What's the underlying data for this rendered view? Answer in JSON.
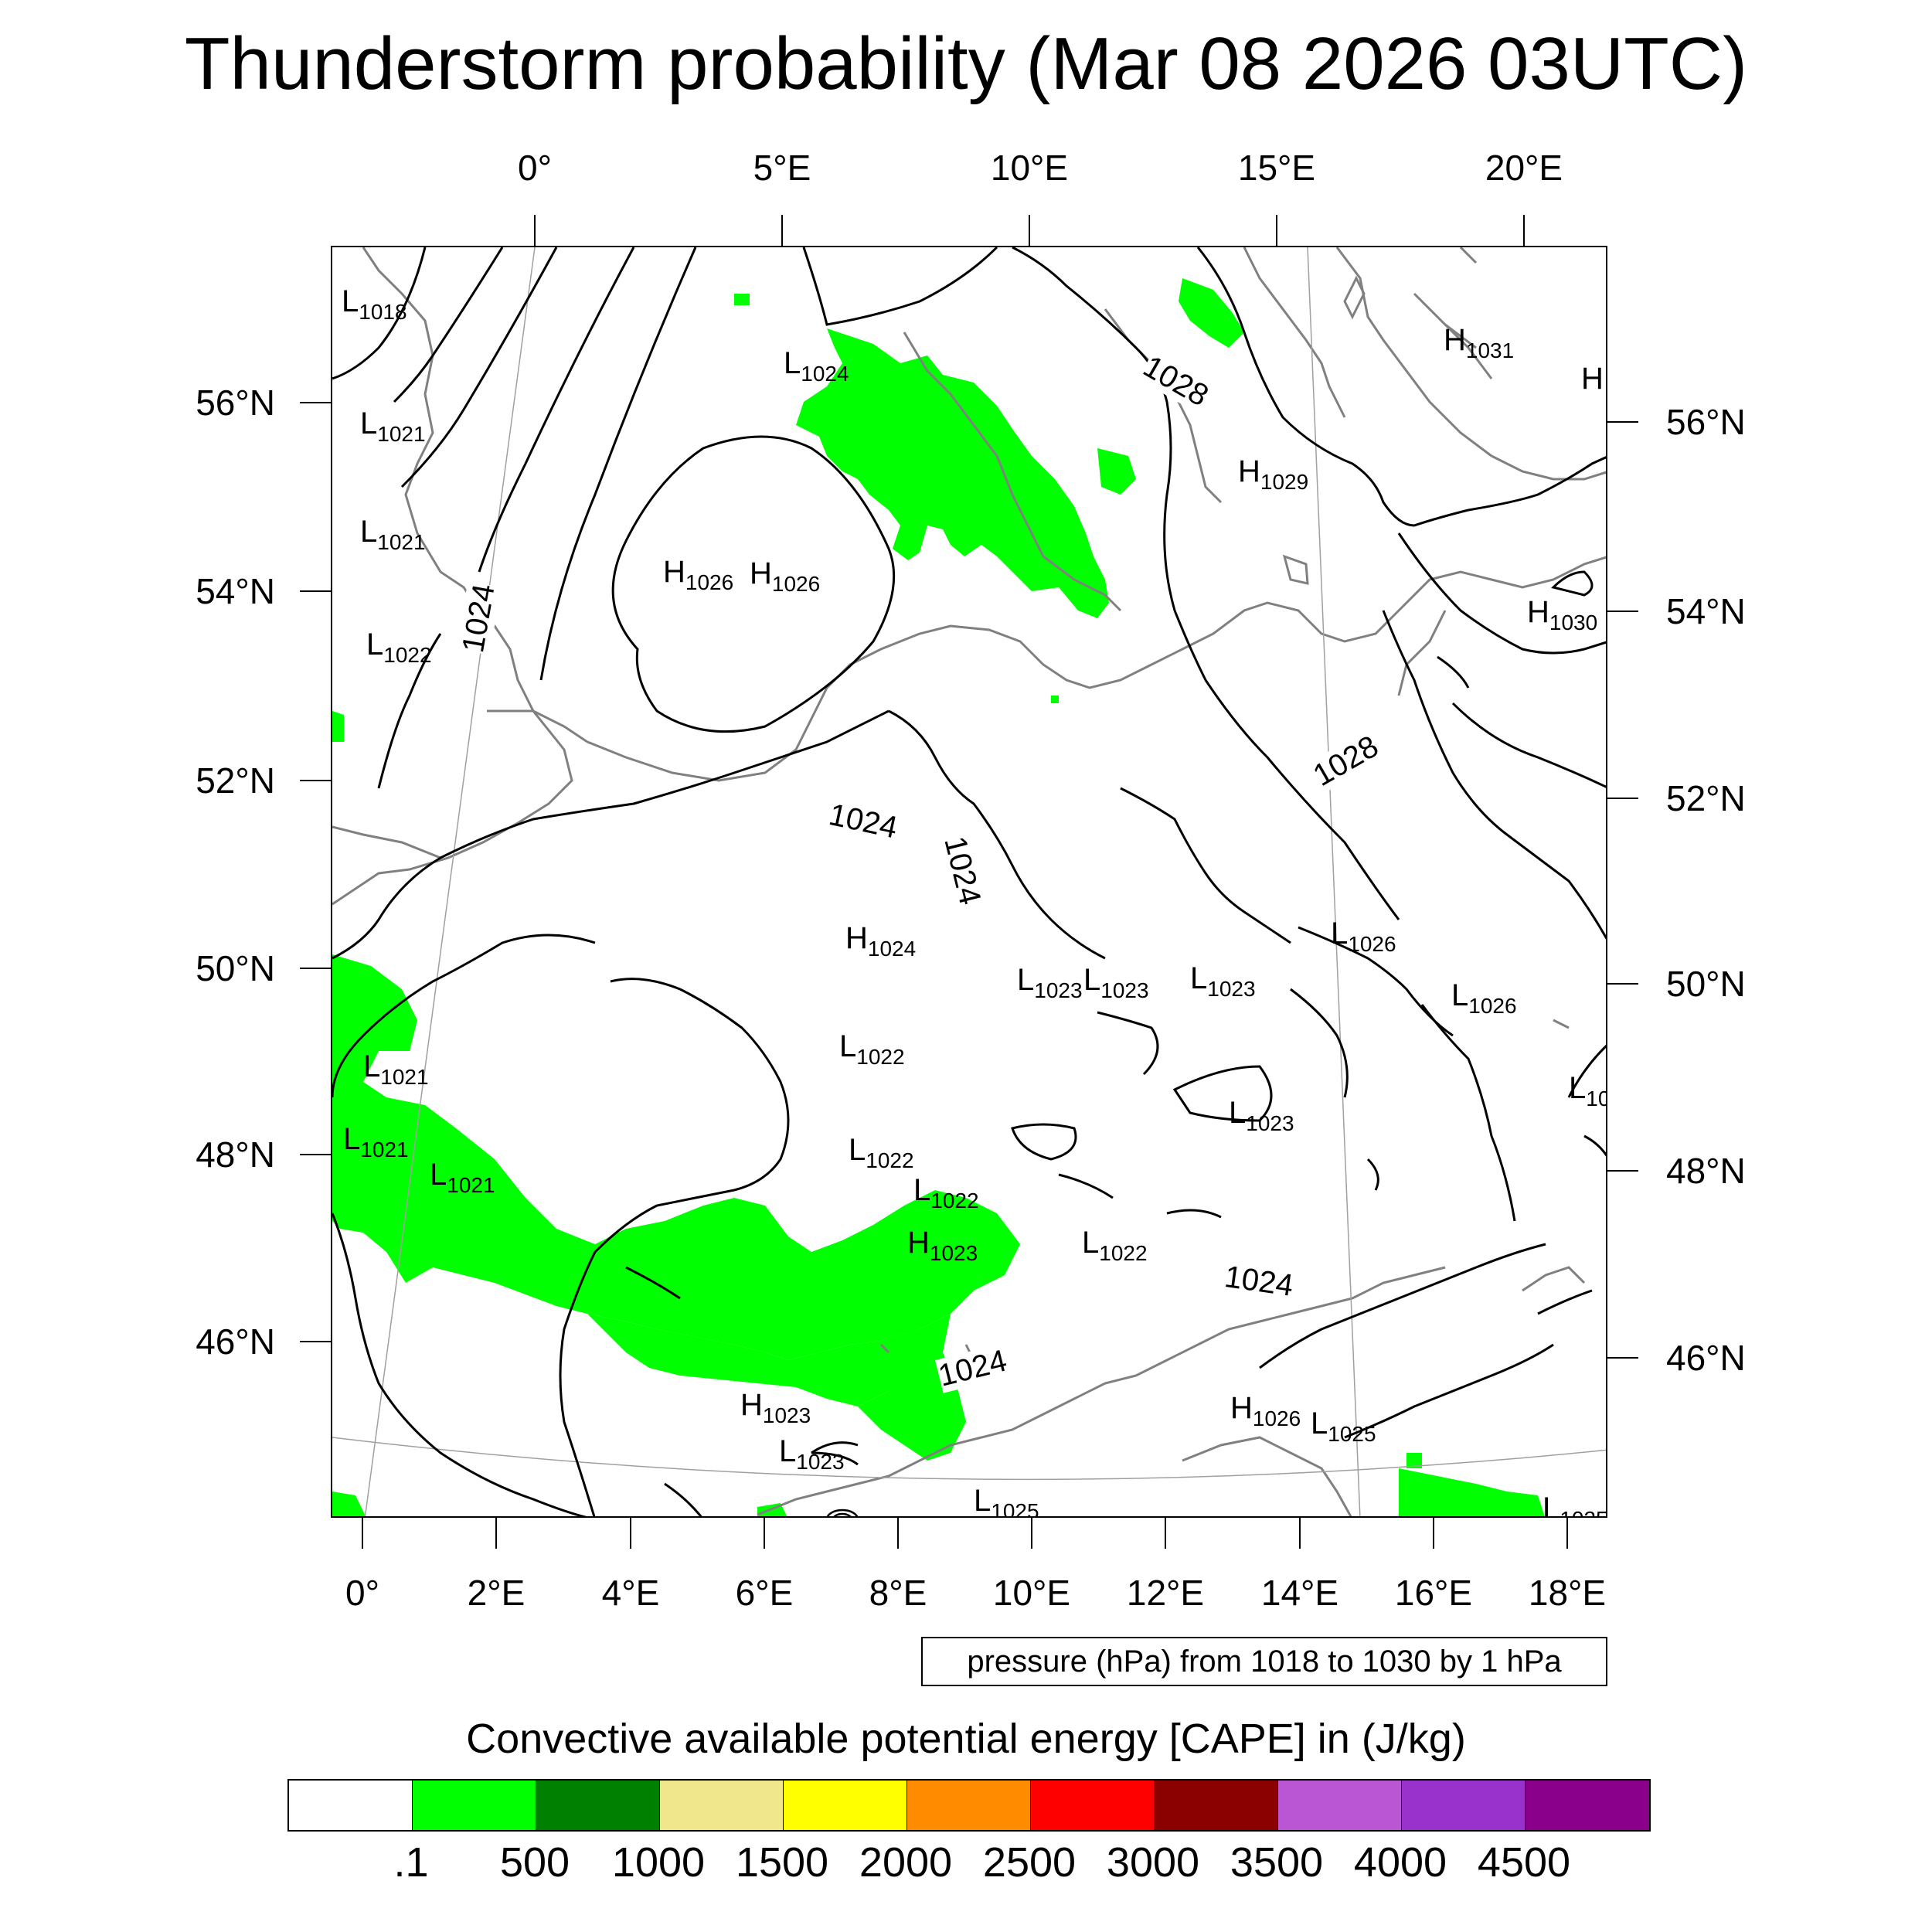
{
  "title": "Thunderstorm probability (Mar 08 2026 03UTC)",
  "axes": {
    "top_ticks": [
      "0°",
      "5°E",
      "10°E",
      "15°E",
      "20°E"
    ],
    "bottom_ticks": [
      "0°",
      "2°E",
      "4°E",
      "6°E",
      "8°E",
      "10°E",
      "12°E",
      "14°E",
      "16°E",
      "18°E"
    ],
    "left_ticks": [
      "56°N",
      "54°N",
      "52°N",
      "50°N",
      "48°N",
      "46°N"
    ],
    "right_ticks": [
      "56°N",
      "54°N",
      "52°N",
      "50°N",
      "48°N",
      "46°N"
    ]
  },
  "pressure_centers": [
    {
      "type": "L",
      "value": "1018"
    },
    {
      "type": "L",
      "value": "1021"
    },
    {
      "type": "L",
      "value": "1021"
    },
    {
      "type": "L",
      "value": "1022"
    },
    {
      "type": "L",
      "value": "1024"
    },
    {
      "type": "H",
      "value": "1026"
    },
    {
      "type": "H",
      "value": "1026"
    },
    {
      "type": "H",
      "value": "1031"
    },
    {
      "type": "H",
      "value": "1029"
    },
    {
      "type": "H",
      "value": "1030"
    },
    {
      "type": "H",
      "value": ""
    },
    {
      "type": "H",
      "value": "1024"
    },
    {
      "type": "L",
      "value": "1026"
    },
    {
      "type": "L",
      "value": "1026"
    },
    {
      "type": "L",
      "value": "1023"
    },
    {
      "type": "L",
      "value": "1023"
    },
    {
      "type": "L",
      "value": "1023"
    },
    {
      "type": "L",
      "value": "1022"
    },
    {
      "type": "L",
      "value": "1023"
    },
    {
      "type": "L",
      "value": "1021"
    },
    {
      "type": "L",
      "value": "1021"
    },
    {
      "type": "L",
      "value": "1021"
    },
    {
      "type": "L",
      "value": "1022"
    },
    {
      "type": "L",
      "value": "1022"
    },
    {
      "type": "H",
      "value": "1023"
    },
    {
      "type": "L",
      "value": "1022"
    },
    {
      "type": "H",
      "value": "1023"
    },
    {
      "type": "L",
      "value": "1023"
    },
    {
      "type": "L",
      "value": "1025"
    },
    {
      "type": "H",
      "value": "1026"
    },
    {
      "type": "L",
      "value": "1025"
    },
    {
      "type": "L",
      "value": "1025"
    },
    {
      "type": "L",
      "value": "10"
    }
  ],
  "isobar_labels": [
    "1024",
    "1028",
    "1028",
    "1024",
    "1024",
    "1024",
    "1024"
  ],
  "pressure_note": "pressure (hPa) from 1018 to 1030 by 1 hPa",
  "colorbar": {
    "title": "Convective available potential energy [CAPE] in (J/kg)",
    "colors": [
      "#ffffff",
      "#00ff00",
      "#008000",
      "#f0e68c",
      "#ffff00",
      "#ff8c00",
      "#ff0000",
      "#8b0000",
      "#ba55d3",
      "#9932cc",
      "#8b008b"
    ],
    "labels": [
      ".1",
      "500",
      "1000",
      "1500",
      "2000",
      "2500",
      "3000",
      "3500",
      "4000",
      "4500"
    ]
  }
}
